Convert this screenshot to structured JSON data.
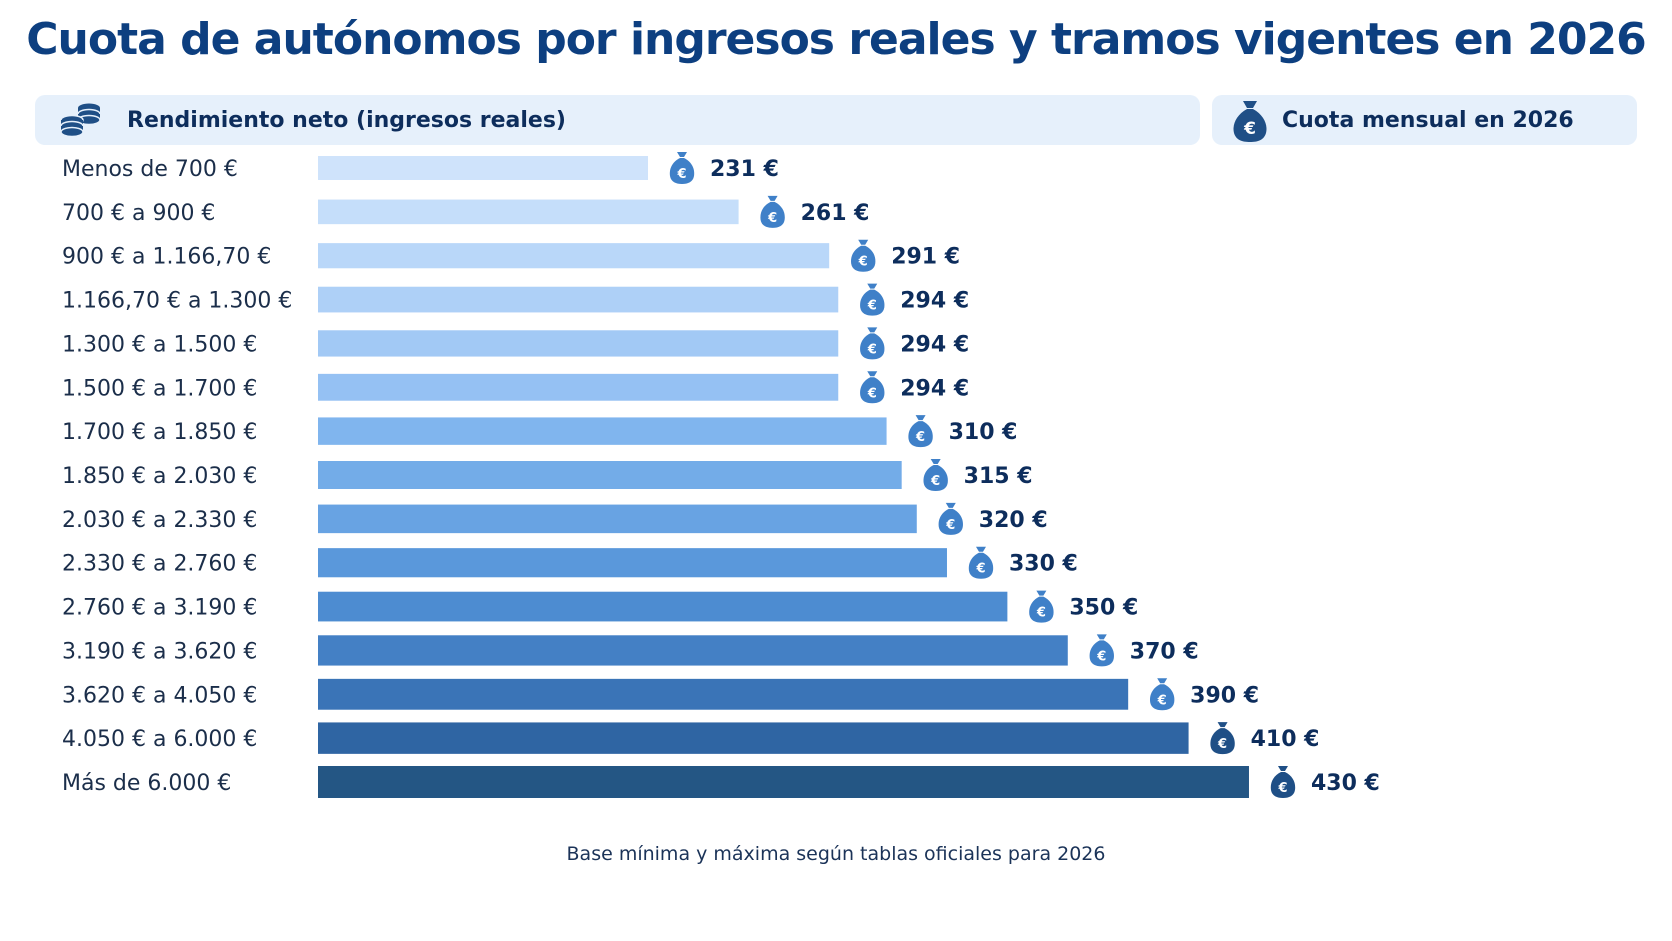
{
  "header": {
    "title": "Cuota de autónomos por ingresos reales y tramos vigentes en 2026",
    "left_label": "Rendimiento neto (ingresos reales)",
    "left_icon": "coin-stack-icon",
    "right_label": "Cuota mensual en 2026",
    "right_icon": "money-bag-icon"
  },
  "footnote": "Base mínima y máxima según tablas oficiales para 2026",
  "chart_data": {
    "type": "bar",
    "orientation": "horizontal",
    "categories": [
      "Menos de 700 €",
      "700 € a 900 €",
      "900 € a 1.166,70 €",
      "1.166,70 € a 1.300 €",
      "1.300 € a 1.500 €",
      "1.500 € a 1.700 €",
      "1.700 € a 1.850 €",
      "1.850 € a 2.030 €",
      "2.030 € a 2.330 €",
      "2.330 € a 2.760 €",
      "2.760 € a 3.190 €",
      "3.190 € a 3.620 €",
      "3.620 € a 4.050 €",
      "4.050 € a 6.000 €",
      "Más de 6.000 €"
    ],
    "values": [
      231,
      261,
      291,
      294,
      294,
      294,
      310,
      315,
      320,
      330,
      350,
      370,
      390,
      410,
      430
    ],
    "value_labels": [
      "231 €",
      "261 €",
      "291 €",
      "294 €",
      "294 €",
      "294 €",
      "310 €",
      "315 €",
      "320 €",
      "330 €",
      "350 €",
      "370 €",
      "390 €",
      "410 €",
      "430 €"
    ],
    "colors": [
      "#cfe3fb",
      "#c5defa",
      "#b9d7f9",
      "#aed0f7",
      "#a2c9f5",
      "#95c1f3",
      "#80b5ee",
      "#73ace8",
      "#68a3e3",
      "#5a98db",
      "#4d8cd1",
      "#4480c5",
      "#3a74b7",
      "#2f65a3",
      "#245684"
    ],
    "icon_color": "#3f80c8",
    "icon_color_dark": "#1f4f86",
    "value_unit": "€",
    "grid": false,
    "legend": "none"
  }
}
